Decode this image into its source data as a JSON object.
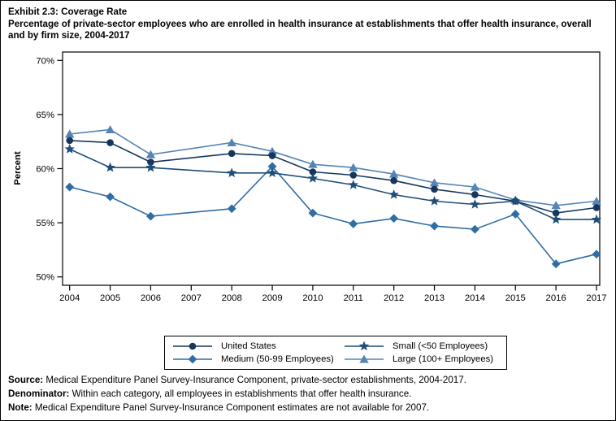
{
  "chart_data": {
    "type": "line",
    "title": "Exhibit 2.3: Coverage Rate",
    "subtitle": "Percentage of private-sector employees who are enrolled in health insurance at establishments that offer health insurance, overall and by firm size, 2004-2017",
    "xlabel": "",
    "ylabel": "Percent",
    "ylim": [
      50,
      70
    ],
    "yticks": [
      50,
      55,
      60,
      65,
      70
    ],
    "ytick_suffix": "%",
    "grid": false,
    "legend_position": "bottom",
    "x": [
      "2004",
      "2005",
      "2006",
      "2007",
      "2008",
      "2009",
      "2010",
      "2011",
      "2012",
      "2013",
      "2014",
      "2015",
      "2016",
      "2017"
    ],
    "note_on_gap": "Estimates not available for 2007; lines connect 2006 to 2008",
    "series": [
      {
        "name": "United States",
        "marker": "circle",
        "color": "#16365C",
        "values": [
          62.6,
          62.4,
          60.6,
          null,
          61.4,
          61.2,
          59.7,
          59.4,
          58.9,
          58.1,
          57.6,
          57.0,
          55.9,
          56.4
        ]
      },
      {
        "name": "Small (<50 Employees)",
        "marker": "star",
        "color": "#1F4E79",
        "values": [
          61.8,
          60.1,
          60.1,
          null,
          59.6,
          59.6,
          59.1,
          58.5,
          57.6,
          57.0,
          56.7,
          57.0,
          55.3,
          55.3
        ]
      },
      {
        "name": "Medium (50-99 Employees)",
        "marker": "diamond",
        "color": "#2F6DA4",
        "values": [
          58.3,
          57.4,
          55.6,
          null,
          56.3,
          60.2,
          55.9,
          54.9,
          55.4,
          54.7,
          54.4,
          55.8,
          51.2,
          52.1
        ]
      },
      {
        "name": "Large (100+ Employees)",
        "marker": "triangle",
        "color": "#5585B5",
        "values": [
          63.2,
          63.6,
          61.3,
          null,
          62.4,
          61.6,
          60.4,
          60.1,
          59.5,
          58.7,
          58.3,
          57.1,
          56.6,
          57.0
        ]
      }
    ]
  },
  "footer": {
    "source_label": "Source:",
    "source_text": " Medical Expenditure Panel Survey-Insurance Component, private-sector establishments, 2004-2017.",
    "denominator_label": "Denominator:",
    "denominator_text": " Within each category, all employees in establishments that offer health insurance.",
    "note_label": "Note:",
    "note_text": " Medical Expenditure Panel Survey-Insurance Component estimates are not available for 2007."
  }
}
